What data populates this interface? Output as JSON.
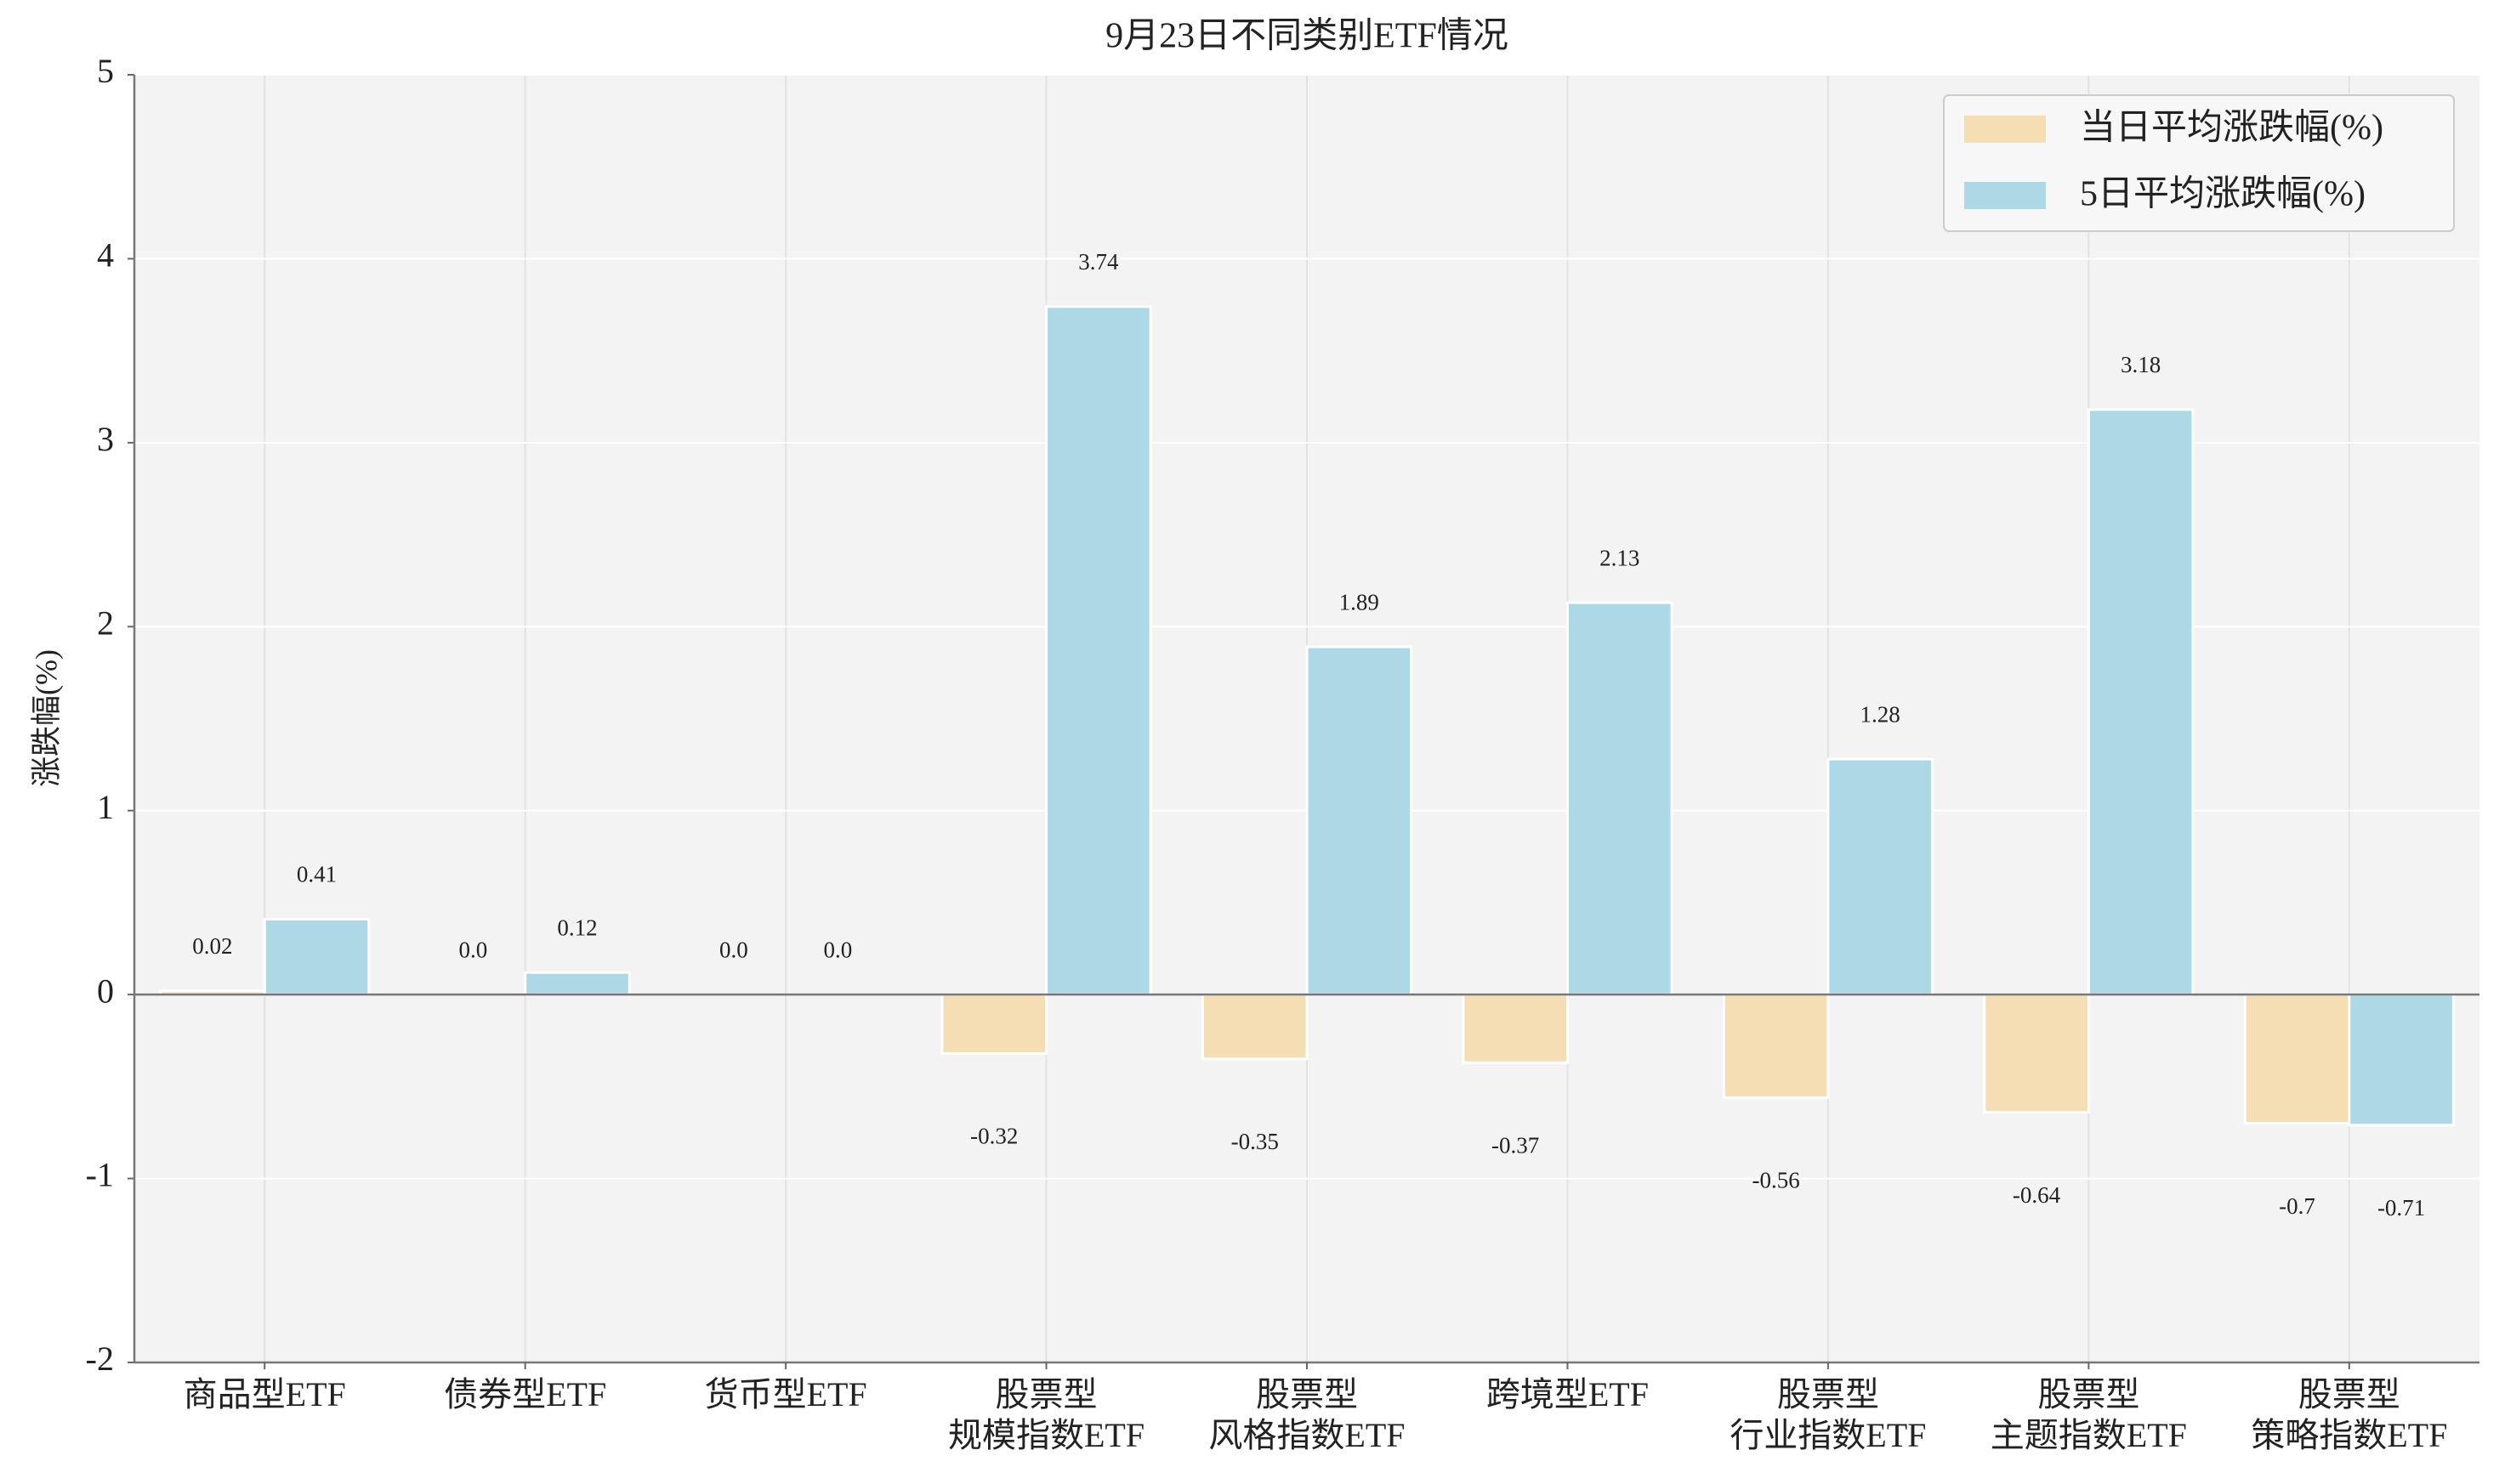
{
  "chart_data": {
    "type": "bar",
    "title": "9月23日不同类别ETF情况",
    "ylabel": "涨跌幅(%)",
    "categories": [
      "商品型ETF",
      "债券型ETF",
      "货币型ETF",
      "股票型\n规模指数ETF",
      "股票型\n风格指数ETF",
      "跨境型ETF",
      "股票型\n行业指数ETF",
      "股票型\n主题指数ETF",
      "股票型\n策略指数ETF"
    ],
    "series": [
      {
        "name": "当日平均涨跌幅(%)",
        "color": "#f5deb3",
        "values": [
          0.02,
          0,
          0,
          -0.32,
          -0.35,
          -0.37,
          -0.56,
          -0.64,
          -0.7
        ],
        "value_labels": [
          "0.02",
          "0.0",
          "0.0",
          "-0.32",
          "-0.35",
          "-0.37",
          "-0.56",
          "-0.64",
          "-0.7"
        ]
      },
      {
        "name": "5日平均涨跌幅(%)",
        "color": "#add8e6",
        "values": [
          0.41,
          0.12,
          0,
          3.74,
          1.89,
          2.13,
          1.28,
          3.18,
          -0.71
        ],
        "value_labels": [
          "0.41",
          "0.12",
          "0.0",
          "3.74",
          "1.89",
          "2.13",
          "1.28",
          "3.18",
          "-0.71"
        ]
      }
    ],
    "ylim": [
      -2,
      5
    ],
    "yticks": [
      -2,
      -1,
      0,
      1,
      2,
      3,
      4,
      5
    ],
    "grid": true,
    "legend": "upper right"
  }
}
